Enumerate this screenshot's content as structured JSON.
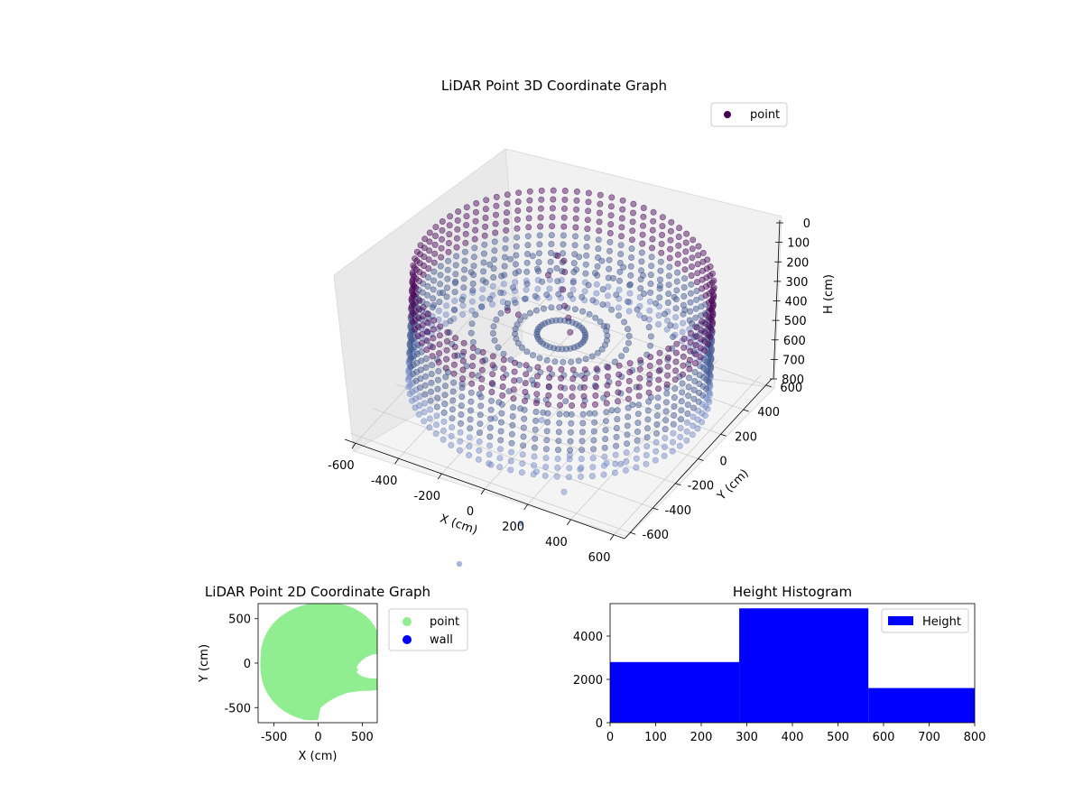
{
  "colors": {
    "point_dark": "#440154",
    "point_mid": "#3b528b",
    "point_light": "#6f86c4",
    "point_2d": "#90ee90",
    "wall": "#0000ff",
    "hist": "#0000ff",
    "pane": "#f2f2f2",
    "grid": "#c8c8c8"
  },
  "chart_data": [
    {
      "type": "scatter",
      "projection": "3d",
      "title": "LiDAR Point 3D Coordinate Graph",
      "xlabel": "X (cm)",
      "ylabel": "Y (cm)",
      "zlabel": "H (cm)",
      "xticks": [
        -600,
        -400,
        -200,
        0,
        200,
        400,
        600
      ],
      "yticks": [
        -600,
        -400,
        -200,
        0,
        200,
        400,
        600
      ],
      "zticks": [
        0,
        100,
        200,
        300,
        400,
        500,
        600,
        700,
        800
      ],
      "xlim": [
        -650,
        650
      ],
      "ylim": [
        -650,
        650
      ],
      "zlim": [
        800,
        0
      ],
      "z_inverted": true,
      "legend": {
        "position": "top-right",
        "entries": [
          "point"
        ]
      },
      "series": [
        {
          "name": "point",
          "description_shape": "cylindrical wall of points radius ~620 cm from H 150 to 700, plus interior structures",
          "wall_radius": 620,
          "wall_h_range": [
            150,
            700
          ],
          "points": [
            [
              -80,
              100,
              120
            ],
            [
              -60,
              120,
              150
            ],
            [
              -40,
              90,
              180
            ],
            [
              -100,
              60,
              200
            ],
            [
              -20,
              40,
              230
            ],
            [
              20,
              -20,
              260
            ],
            [
              60,
              -60,
              280
            ],
            [
              100,
              -120,
              300
            ],
            [
              -150,
              -100,
              320
            ],
            [
              -220,
              -60,
              350
            ],
            [
              -260,
              20,
              380
            ],
            [
              150,
              120,
              400
            ],
            [
              200,
              -200,
              430
            ],
            [
              -300,
              -300,
              460
            ],
            [
              0,
              -250,
              500
            ],
            [
              50,
              -300,
              550
            ],
            [
              100,
              -350,
              600
            ],
            [
              -100,
              -380,
              650
            ],
            [
              250,
              -380,
              700
            ],
            [
              320,
              -420,
              720
            ],
            [
              380,
              -300,
              740
            ],
            [
              420,
              -250,
              760
            ],
            [
              300,
              -520,
              780
            ],
            [
              -50,
              -500,
              790
            ],
            [
              150,
              -480,
              760
            ]
          ]
        }
      ]
    },
    {
      "type": "scatter",
      "title": "LiDAR Point 2D Coordinate Graph",
      "xlabel": "X (cm)",
      "ylabel": "Y (cm)",
      "xticks": [
        -500,
        0,
        500
      ],
      "yticks": [
        500,
        0,
        -500
      ],
      "xlim": [
        -680,
        670
      ],
      "ylim": [
        -670,
        670
      ],
      "legend": {
        "position": "right",
        "entries": [
          "point",
          "wall"
        ]
      },
      "series": [
        {
          "name": "point",
          "region": "disc radius ~630 cm centered near (0,0) with gaps on the right side"
        },
        {
          "name": "wall",
          "points": []
        }
      ]
    },
    {
      "type": "bar",
      "title": "Height Histogram",
      "xlabel": "",
      "ylabel": "",
      "xticks": [
        0,
        100,
        200,
        300,
        400,
        500,
        600,
        700,
        800
      ],
      "yticks": [
        0,
        2000,
        4000
      ],
      "xlim": [
        0,
        800
      ],
      "ylim": [
        0,
        5500
      ],
      "bins": [
        0,
        283.3,
        566.7,
        800
      ],
      "counts": [
        2800,
        5280,
        1600
      ],
      "legend": {
        "position": "top-right",
        "entries": [
          "Height"
        ]
      }
    }
  ]
}
